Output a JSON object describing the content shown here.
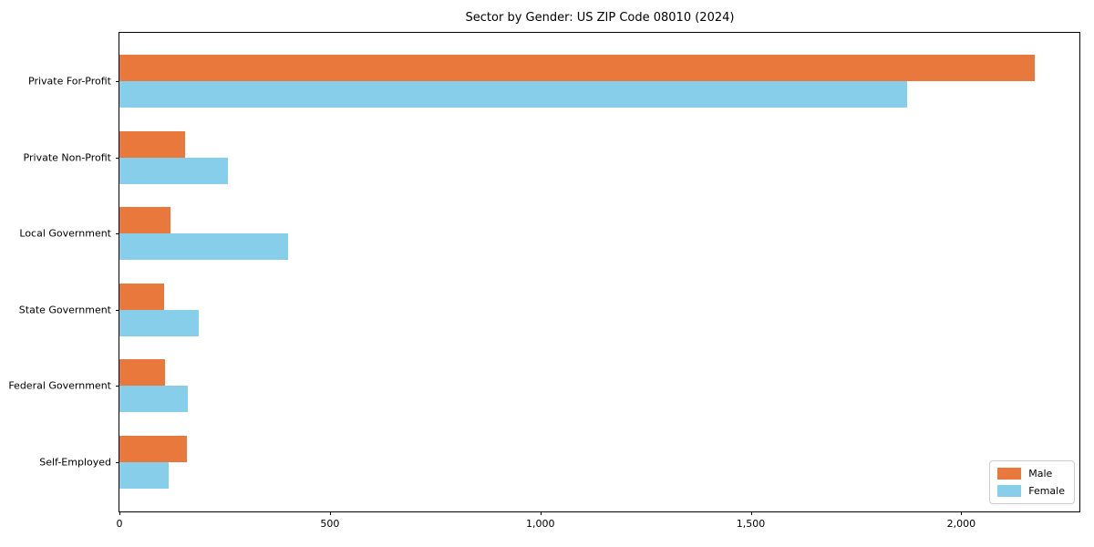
{
  "chart_data": {
    "type": "bar",
    "orientation": "horizontal",
    "title": "Sector by Gender: US ZIP Code 08010 (2024)",
    "categories": [
      "Private For-Profit",
      "Private Non-Profit",
      "Local Government",
      "State Government",
      "Federal Government",
      "Self-Employed"
    ],
    "series": [
      {
        "name": "Male",
        "color": "#E8783C",
        "values": [
          2175,
          155,
          122,
          106,
          108,
          160
        ]
      },
      {
        "name": "Female",
        "color": "#87CEEB",
        "values": [
          1872,
          258,
          400,
          188,
          162,
          117
        ]
      }
    ],
    "xlim": [
      0,
      2285
    ],
    "xticks": [
      0,
      500,
      1000,
      1500,
      2000
    ],
    "xtick_labels": [
      "0",
      "500",
      "1,000",
      "1,500",
      "2,000"
    ],
    "ylabel": "",
    "xlabel": "",
    "grid": false,
    "legend": {
      "position": "lower right",
      "entries": [
        "Male",
        "Female"
      ]
    },
    "axis_color": "#000000",
    "background_color": "#ffffff"
  }
}
